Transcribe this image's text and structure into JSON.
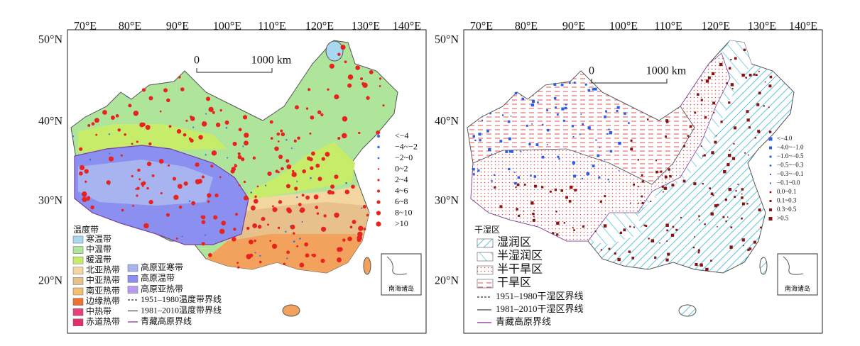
{
  "panels": [
    {
      "x_labels": [
        "70°E",
        "80°E",
        "90°E",
        "100°E",
        "110°E",
        "120°E",
        "130°E",
        "140°E"
      ],
      "y_labels": [
        "50°N",
        "40°N",
        "30°N",
        "20°N"
      ],
      "scale": {
        "start": "0",
        "end": "1000 km"
      },
      "value_legend": [
        "<−4",
        "−4~−2",
        "−2~0",
        "0~2",
        "2~4",
        "4~6",
        "6~8",
        "8~10",
        ">10"
      ],
      "zone_legend": {
        "title": "温度带",
        "items": [
          "寒温带",
          "中温带",
          "暖温带",
          "北亚热带",
          "中亚热带",
          "南亚热带",
          "边缘热带",
          "中热带",
          "赤道热带",
          "高原亚寒带",
          "高原温带",
          "高原亚热带"
        ],
        "lines": [
          "1951–1980温度带界线",
          "1981–2010温度带界线",
          "青藏高原界线"
        ]
      },
      "inset_label": "南海诸岛"
    },
    {
      "x_labels": [
        "70°E",
        "80°E",
        "90°E",
        "100°E",
        "110°E",
        "120°E",
        "130°E",
        "140°E"
      ],
      "y_labels": [
        "50°N",
        "40°N",
        "30°N",
        "20°N"
      ],
      "scale": {
        "start": "0",
        "end": "1000 km"
      },
      "value_legend": [
        "<−4.0",
        "−4.0~−1.0",
        "−1.0~−0.5",
        "−0.5~−0.3",
        "−0.3~−0.1",
        "−0.1~0.0",
        "0.0~0.1",
        "0.1~0.3",
        "0.3~0.5",
        ">0.5"
      ],
      "zone_legend": {
        "title": "干湿区",
        "items": [
          "湿润区",
          "半湿润区",
          "半干旱区",
          "干旱区"
        ],
        "lines": [
          "1951–1980干湿区界线",
          "1981–2010干湿区界线",
          "青藏高原界线"
        ]
      },
      "inset_label": "南海诸岛"
    }
  ]
}
